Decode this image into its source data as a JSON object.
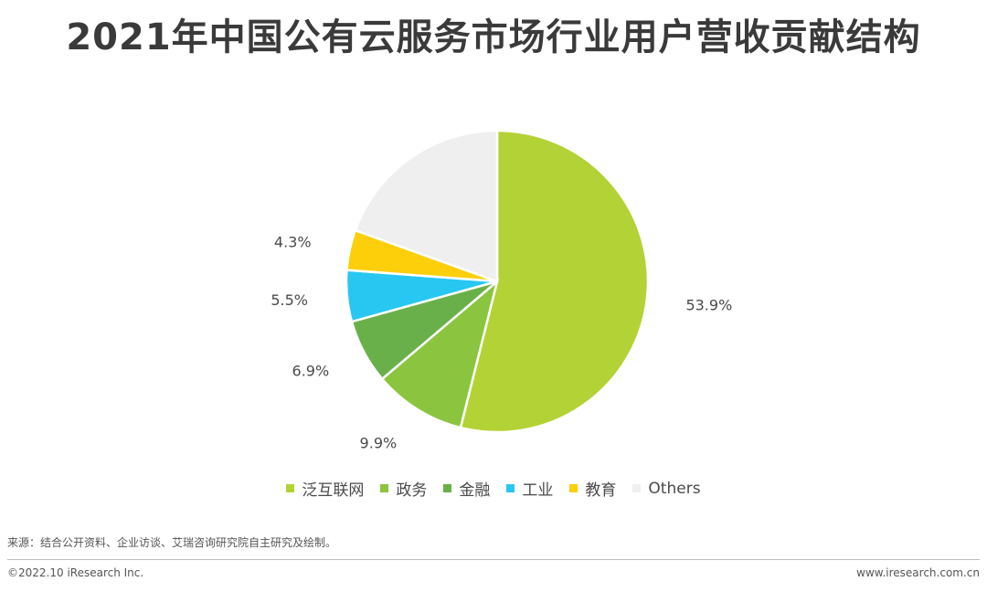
{
  "title": "2021年中国公有云服务市场行业用户营收贡献结构",
  "chart_data": {
    "type": "pie",
    "series": [
      {
        "name": "泛互联网",
        "value": 53.9,
        "label": "53.9%",
        "color": "#b3d235"
      },
      {
        "name": "政务",
        "value": 9.9,
        "label": "9.9%",
        "color": "#8bc43f"
      },
      {
        "name": "金融",
        "value": 6.9,
        "label": "6.9%",
        "color": "#6ab04a"
      },
      {
        "name": "工业",
        "value": 5.5,
        "label": "5.5%",
        "color": "#27c7f2"
      },
      {
        "name": "教育",
        "value": 4.3,
        "label": "4.3%",
        "color": "#fccf0a"
      },
      {
        "name": "Others",
        "value": 19.5,
        "label": "",
        "color": "#efefef"
      }
    ],
    "legend_position": "bottom"
  },
  "source": "来源：结合公开资料、企业访谈、艾瑞咨询研究院自主研究及绘制。",
  "copyright": "©2022.10 iResearch Inc.",
  "website": "www.iresearch.com.cn"
}
